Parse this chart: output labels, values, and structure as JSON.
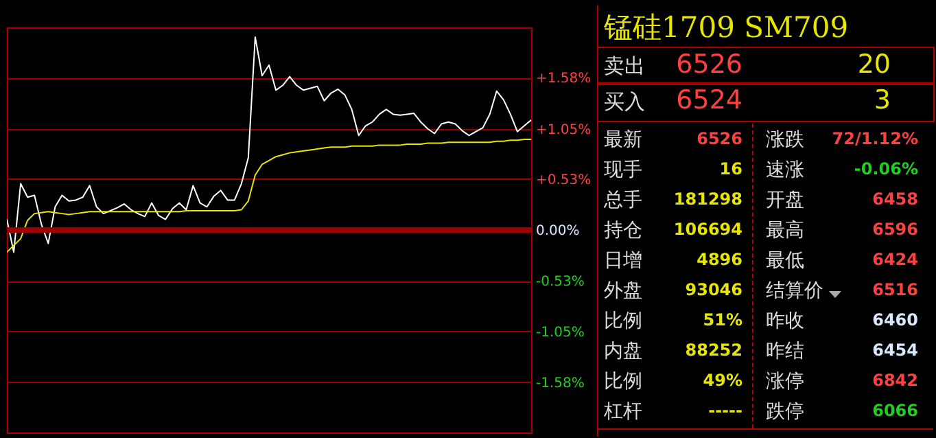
{
  "chart_data": [
    {
      "type": "line",
      "categories": [
        null,
        null,
        null,
        null,
        null,
        null,
        null,
        null,
        null,
        null,
        null,
        null,
        null,
        null,
        null,
        null,
        null,
        null,
        null,
        null,
        null,
        null,
        null,
        null,
        null,
        null,
        null,
        null,
        null,
        null,
        null,
        null,
        null,
        null,
        null,
        null,
        null,
        null,
        null,
        null,
        null,
        null,
        null,
        null,
        null,
        null,
        null,
        null,
        null,
        null,
        null,
        null,
        null,
        null,
        null,
        null,
        null,
        null,
        null,
        null,
        null,
        null,
        null,
        null,
        null,
        null,
        null,
        null,
        null,
        null,
        null,
        null,
        null,
        null,
        null,
        null,
        null
      ],
      "ylim": [
        -2.1,
        2.1
      ],
      "yticks": [
        {
          "value": 1.58,
          "label": "+1.58%"
        },
        {
          "value": 1.05,
          "label": "+1.05%"
        },
        {
          "value": 0.53,
          "label": "+0.53%"
        },
        {
          "value": 0,
          "label": "0.00%"
        },
        {
          "value": -0.53,
          "label": "-0.53%"
        },
        {
          "value": -1.05,
          "label": "-1.05%"
        },
        {
          "value": -1.58,
          "label": "-1.58%"
        }
      ],
      "tick_labels": "y",
      "grid": "y",
      "line_style": "solid",
      "marker": "none",
      "ref_lines": [
        {
          "axis": "y",
          "value": 0,
          "color": "#a00000"
        }
      ],
      "series": [
        {
          "color": "#ffffff",
          "values": [
            0.11,
            -0.23,
            0.48,
            0.34,
            0.36,
            0.06,
            -0.14,
            0.24,
            0.36,
            0.3,
            0.31,
            0.34,
            0.46,
            0.24,
            0.17,
            0.2,
            0.23,
            0.27,
            0.21,
            0.17,
            0.14,
            0.28,
            0.15,
            0.11,
            0.22,
            0.28,
            0.21,
            0.46,
            0.28,
            0.24,
            0.35,
            0.41,
            0.31,
            0.31,
            0.48,
            0.75,
            2.0,
            1.6,
            1.71,
            1.45,
            1.5,
            1.59,
            1.5,
            1.45,
            1.47,
            1.49,
            1.34,
            1.42,
            1.46,
            1.4,
            1.25,
            0.98,
            1.08,
            1.12,
            1.2,
            1.25,
            1.2,
            1.19,
            1.2,
            1.21,
            1.12,
            1.05,
            1.0,
            1.1,
            1.12,
            1.1,
            1.03,
            0.98,
            1.02,
            1.06,
            1.2,
            1.44,
            1.35,
            1.2,
            1.02,
            1.08,
            1.14
          ]
        },
        {
          "color": "#e6e600",
          "values": [
            -0.23,
            -0.16,
            -0.09,
            0.1,
            0.17,
            0.18,
            0.19,
            0.18,
            0.17,
            0.16,
            0.17,
            0.18,
            0.19,
            0.19,
            0.19,
            0.19,
            0.19,
            0.19,
            0.19,
            0.19,
            0.19,
            0.19,
            0.19,
            0.19,
            0.19,
            0.19,
            0.2,
            0.2,
            0.2,
            0.2,
            0.2,
            0.2,
            0.2,
            0.2,
            0.21,
            0.3,
            0.57,
            0.68,
            0.72,
            0.76,
            0.78,
            0.8,
            0.81,
            0.82,
            0.83,
            0.84,
            0.85,
            0.86,
            0.86,
            0.86,
            0.87,
            0.87,
            0.87,
            0.87,
            0.88,
            0.88,
            0.88,
            0.88,
            0.89,
            0.89,
            0.89,
            0.9,
            0.9,
            0.9,
            0.91,
            0.91,
            0.91,
            0.91,
            0.91,
            0.91,
            0.91,
            0.92,
            0.92,
            0.93,
            0.93,
            0.94,
            0.94
          ]
        }
      ]
    },
    {
      "type": "other",
      "title": "锰硅1709 SM709",
      "annotations": [
        "卖出",
        "6526",
        "20",
        "买入",
        "6524",
        "3",
        "最新",
        "6526",
        "涨跌",
        "72/1.12%",
        "现手",
        "16",
        "速涨",
        "-0.06%",
        "总手",
        "181298",
        "开盘",
        "6458",
        "持仓",
        "106694",
        "最高",
        "6596",
        "日增",
        "4896",
        "最低",
        "6424",
        "外盘",
        "93046",
        "结算价",
        "6516",
        "比例",
        "51%",
        "昨收",
        "6460",
        "内盘",
        "88252",
        "昨结",
        "6454",
        "比例",
        "49%",
        "涨停",
        "6842",
        "杠杆",
        "-----",
        "跌停",
        "6066"
      ]
    }
  ]
}
